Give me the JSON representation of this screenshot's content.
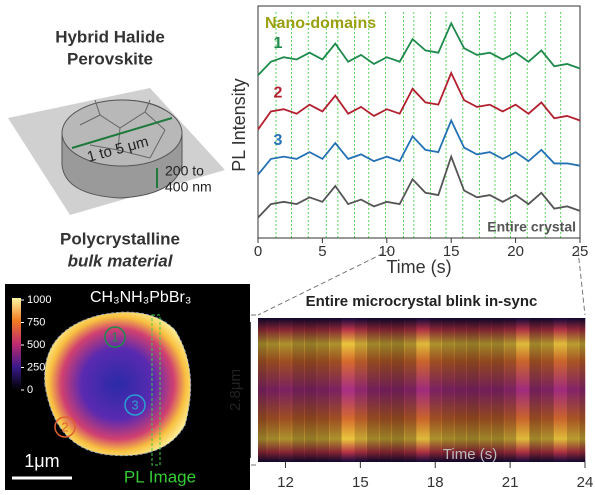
{
  "schematic": {
    "title_line1": "Hybrid Halide",
    "title_line2": "Perovskite",
    "width_label": "1 to 5 μm",
    "thickness_line1": "200 to",
    "thickness_line2": "400 nm",
    "caption_line1": "Polycrystalline",
    "caption_line2": "bulk material"
  },
  "chart_data": [
    {
      "type": "line",
      "annotation": "Nano-domains",
      "y_label": "PL Intensity",
      "x_label": "Time (s)",
      "x": [
        0,
        1,
        2,
        3,
        4,
        5,
        6,
        7,
        8,
        9,
        10,
        11,
        12,
        13,
        14,
        15,
        16,
        17,
        18,
        19,
        20,
        21,
        22,
        23,
        24,
        25
      ],
      "xlim": [
        0,
        25
      ],
      "xticks": [
        0,
        5,
        10,
        15,
        20,
        25
      ],
      "ylim": [
        0,
        10
      ],
      "series": [
        {
          "name": "1",
          "color": "#1e8a4c",
          "values": [
            7.2,
            7.8,
            8.0,
            7.9,
            8.2,
            7.9,
            8.6,
            7.8,
            8.1,
            7.7,
            8.0,
            7.8,
            8.8,
            8.3,
            8.2,
            9.5,
            8.4,
            8.1,
            8.2,
            7.9,
            8.2,
            7.8,
            8.3,
            7.6,
            7.7,
            7.5
          ]
        },
        {
          "name": "2",
          "color": "#b3202f",
          "values": [
            4.8,
            5.6,
            5.7,
            5.5,
            5.9,
            5.6,
            6.3,
            5.5,
            5.8,
            5.4,
            5.7,
            5.5,
            6.6,
            6.0,
            5.9,
            7.3,
            6.1,
            5.8,
            5.9,
            5.6,
            5.9,
            5.5,
            6.0,
            5.3,
            5.4,
            5.2
          ]
        },
        {
          "name": "3",
          "color": "#2471b5",
          "values": [
            2.8,
            3.5,
            3.6,
            3.5,
            3.8,
            3.5,
            4.2,
            3.5,
            3.7,
            3.4,
            3.6,
            3.4,
            4.5,
            3.9,
            3.8,
            5.2,
            4.0,
            3.7,
            3.8,
            3.5,
            3.8,
            3.4,
            3.9,
            3.3,
            3.3,
            3.2
          ]
        },
        {
          "name": "Entire crystal",
          "color": "#555555",
          "values": [
            0.9,
            1.5,
            1.6,
            1.5,
            1.8,
            1.6,
            2.3,
            1.5,
            1.7,
            1.4,
            1.6,
            1.5,
            2.6,
            2.0,
            1.9,
            3.6,
            2.1,
            1.8,
            1.9,
            1.6,
            1.9,
            1.5,
            2.0,
            1.3,
            1.4,
            1.2
          ]
        }
      ]
    },
    {
      "type": "heatmap",
      "title": "Entire microcrystal blink in-sync",
      "x_label": "Time (s)",
      "scale_label": "2.8μm",
      "x": [
        11,
        11.5,
        12,
        12.5,
        13,
        13.5,
        14,
        14.5,
        15,
        15.5,
        16,
        16.5,
        17,
        17.5,
        18,
        18.5,
        19,
        19.5,
        20,
        20.5,
        21,
        21.5,
        22,
        22.5,
        23,
        23.5,
        24
      ],
      "values": [
        600,
        650,
        700,
        620,
        600,
        640,
        700,
        950,
        800,
        650,
        620,
        600,
        680,
        900,
        700,
        650,
        620,
        600,
        640,
        620,
        700,
        900,
        650,
        700,
        900,
        750,
        650
      ],
      "xlim": [
        10.9,
        24
      ],
      "xticks": [
        12,
        15,
        18,
        21,
        24
      ]
    },
    {
      "type": "image",
      "material": "CH₃NH₃PbBr₃",
      "caption": "PL Image",
      "scale_bar": "1μm",
      "markers": [
        "1",
        "2",
        "3"
      ],
      "colorbar_ticks": [
        0,
        250,
        500,
        750,
        1000
      ],
      "colorbar_lim": [
        0,
        1000
      ]
    }
  ]
}
